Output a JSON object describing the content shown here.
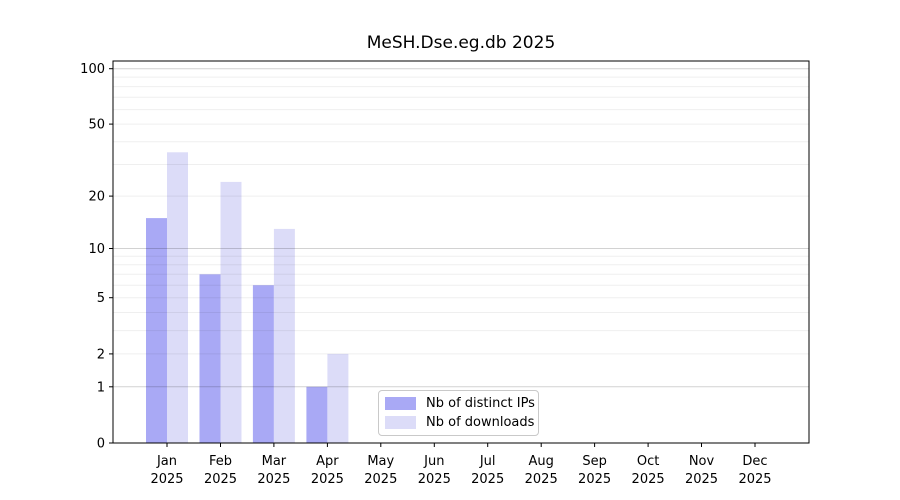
{
  "chart_data": {
    "type": "bar",
    "title": "MeSH.Dse.eg.db 2025",
    "year": "2025",
    "months": [
      "Jan",
      "Feb",
      "Mar",
      "Apr",
      "May",
      "Jun",
      "Jul",
      "Aug",
      "Sep",
      "Oct",
      "Nov",
      "Dec"
    ],
    "categories": [
      "Jan 2025",
      "Feb 2025",
      "Mar 2025",
      "Apr 2025",
      "May 2025",
      "Jun 2025",
      "Jul 2025",
      "Aug 2025",
      "Sep 2025",
      "Oct 2025",
      "Nov 2025",
      "Dec 2025"
    ],
    "series": [
      {
        "name": "Nb of distinct IPs",
        "color": "#a9a9f5",
        "values": [
          15,
          7,
          6,
          1,
          0,
          0,
          0,
          0,
          0,
          0,
          0,
          0
        ]
      },
      {
        "name": "Nb of downloads",
        "color": "#dcdcf8",
        "values": [
          35,
          24,
          13,
          2,
          0,
          0,
          0,
          0,
          0,
          0,
          0,
          0
        ]
      }
    ],
    "yscale": "log1p",
    "yticks": [
      0,
      1,
      2,
      5,
      10,
      20,
      50,
      100
    ],
    "ylim": [
      0,
      110
    ],
    "xlabel": "",
    "ylabel": "",
    "grid": {
      "major_values": [
        1,
        10,
        100
      ],
      "minor_values": [
        2,
        3,
        4,
        5,
        6,
        7,
        8,
        9,
        20,
        30,
        40,
        50,
        60,
        70,
        80,
        90
      ],
      "major_color": "#d2d2d2",
      "minor_color": "#efefef"
    },
    "legend_position": "inside-bottom-center",
    "axis_color": "#000000",
    "background": "#ffffff"
  }
}
